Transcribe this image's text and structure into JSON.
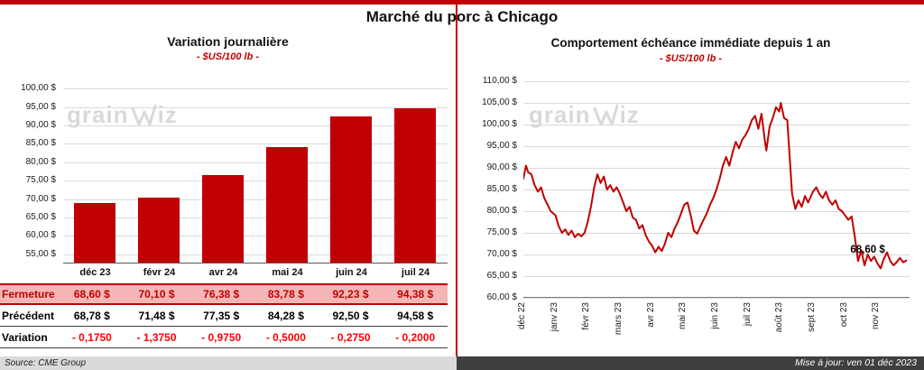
{
  "page": {
    "title": "Marché du porc à Chicago",
    "source": "Source: CME Group",
    "updated": "Mise à jour: ven 01 déc 2023",
    "accent_color": "#C00000",
    "watermark": {
      "left": "grain",
      "right": "iz"
    }
  },
  "chart_data": [
    {
      "type": "bar",
      "title": "Variation journalière",
      "subtitle": "- $US/100 lb -",
      "categories": [
        "déc 23",
        "févr 24",
        "avr 24",
        "mai 24",
        "juin 24",
        "juil 24"
      ],
      "values": [
        68.6,
        70.1,
        76.38,
        83.78,
        92.23,
        94.38
      ],
      "bar_color": "#C00000",
      "grid": true,
      "ylim": [
        52.5,
        102.5
      ],
      "yticks": [
        {
          "v": 55,
          "label": "55,00 $"
        },
        {
          "v": 60,
          "label": "60,00 $"
        },
        {
          "v": 65,
          "label": "65,00 $"
        },
        {
          "v": 70,
          "label": "70,00 $"
        },
        {
          "v": 75,
          "label": "75,00 $"
        },
        {
          "v": 80,
          "label": "80,00 $"
        },
        {
          "v": 85,
          "label": "85,00 $"
        },
        {
          "v": 90,
          "label": "90,00 $"
        },
        {
          "v": 95,
          "label": "95,00 $"
        },
        {
          "v": 100,
          "label": "100,00 $"
        }
      ]
    },
    {
      "type": "line",
      "title": "Comportement échéance immédiate depuis 1 an",
      "subtitle": "- $US/100 lb -",
      "line_color": "#C00000",
      "grid": true,
      "ylim": [
        60,
        110
      ],
      "yticks": [
        {
          "v": 60,
          "label": "60,00 $"
        },
        {
          "v": 65,
          "label": "65,00 $"
        },
        {
          "v": 70,
          "label": "70,00 $"
        },
        {
          "v": 75,
          "label": "75,00 $"
        },
        {
          "v": 80,
          "label": "80,00 $"
        },
        {
          "v": 85,
          "label": "85,00 $"
        },
        {
          "v": 90,
          "label": "90,00 $"
        },
        {
          "v": 95,
          "label": "95,00 $"
        },
        {
          "v": 100,
          "label": "100,00 $"
        },
        {
          "v": 105,
          "label": "105,00 $"
        },
        {
          "v": 110,
          "label": "110,00 $"
        }
      ],
      "xtick_labels": [
        "déc 22",
        "janv 23",
        "févr 23",
        "mars 23",
        "avr 23",
        "mai 23",
        "juin 23",
        "juil 23",
        "août 23",
        "sept 23",
        "oct 23",
        "nov 23"
      ],
      "x_span": 12,
      "end_label": "68,60 $",
      "points": [
        [
          0,
          87.5
        ],
        [
          0.08,
          90.5
        ],
        [
          0.15,
          89
        ],
        [
          0.25,
          88.5
        ],
        [
          0.35,
          86
        ],
        [
          0.45,
          84.5
        ],
        [
          0.55,
          85.5
        ],
        [
          0.65,
          83
        ],
        [
          0.75,
          81.5
        ],
        [
          0.85,
          80
        ],
        [
          1,
          79
        ],
        [
          1.1,
          76.5
        ],
        [
          1.2,
          75
        ],
        [
          1.3,
          75.8
        ],
        [
          1.4,
          74.5
        ],
        [
          1.5,
          75.5
        ],
        [
          1.6,
          74
        ],
        [
          1.7,
          74.8
        ],
        [
          1.8,
          74.2
        ],
        [
          1.9,
          75
        ],
        [
          2,
          77.5
        ],
        [
          2.1,
          81
        ],
        [
          2.2,
          85.5
        ],
        [
          2.3,
          88.5
        ],
        [
          2.4,
          86.5
        ],
        [
          2.5,
          88
        ],
        [
          2.6,
          85
        ],
        [
          2.7,
          86
        ],
        [
          2.8,
          84.5
        ],
        [
          2.9,
          85.5
        ],
        [
          3,
          84
        ],
        [
          3.1,
          82
        ],
        [
          3.2,
          80
        ],
        [
          3.3,
          81
        ],
        [
          3.4,
          78.5
        ],
        [
          3.5,
          78
        ],
        [
          3.6,
          76
        ],
        [
          3.7,
          76.8
        ],
        [
          3.8,
          74.5
        ],
        [
          3.9,
          73
        ],
        [
          4,
          72
        ],
        [
          4.1,
          70.5
        ],
        [
          4.2,
          71.8
        ],
        [
          4.3,
          70.8
        ],
        [
          4.4,
          72.5
        ],
        [
          4.5,
          75
        ],
        [
          4.6,
          74
        ],
        [
          4.7,
          76
        ],
        [
          4.8,
          77.5
        ],
        [
          4.9,
          79.5
        ],
        [
          5,
          81.5
        ],
        [
          5.1,
          82
        ],
        [
          5.2,
          79
        ],
        [
          5.3,
          75.5
        ],
        [
          5.4,
          74.8
        ],
        [
          5.5,
          76.5
        ],
        [
          5.6,
          78
        ],
        [
          5.7,
          79.5
        ],
        [
          5.8,
          81.5
        ],
        [
          5.9,
          83
        ],
        [
          6,
          85
        ],
        [
          6.1,
          87.5
        ],
        [
          6.2,
          90.5
        ],
        [
          6.3,
          92.5
        ],
        [
          6.4,
          90.5
        ],
        [
          6.5,
          93.5
        ],
        [
          6.6,
          96
        ],
        [
          6.7,
          94.5
        ],
        [
          6.8,
          96.5
        ],
        [
          6.9,
          97.5
        ],
        [
          7,
          99
        ],
        [
          7.1,
          101
        ],
        [
          7.2,
          102
        ],
        [
          7.3,
          99
        ],
        [
          7.4,
          102.5
        ],
        [
          7.5,
          96.5
        ],
        [
          7.55,
          94
        ],
        [
          7.65,
          99.5
        ],
        [
          7.75,
          101.5
        ],
        [
          7.85,
          104
        ],
        [
          7.95,
          103
        ],
        [
          8,
          105
        ],
        [
          8.1,
          101.5
        ],
        [
          8.2,
          101
        ],
        [
          8.28,
          92
        ],
        [
          8.35,
          84
        ],
        [
          8.45,
          80.5
        ],
        [
          8.55,
          82.5
        ],
        [
          8.65,
          81
        ],
        [
          8.75,
          83.5
        ],
        [
          8.85,
          82
        ],
        [
          9,
          84.5
        ],
        [
          9.1,
          85.5
        ],
        [
          9.2,
          84
        ],
        [
          9.3,
          83
        ],
        [
          9.4,
          84.5
        ],
        [
          9.5,
          82.5
        ],
        [
          9.6,
          81.5
        ],
        [
          9.7,
          82.5
        ],
        [
          9.8,
          80.5
        ],
        [
          9.9,
          80
        ],
        [
          10,
          79
        ],
        [
          10.1,
          78
        ],
        [
          10.2,
          78.8
        ],
        [
          10.3,
          74
        ],
        [
          10.4,
          68.5
        ],
        [
          10.5,
          71
        ],
        [
          10.6,
          67.5
        ],
        [
          10.7,
          70
        ],
        [
          10.8,
          68.5
        ],
        [
          10.9,
          69.5
        ],
        [
          11,
          68
        ],
        [
          11.1,
          66.8
        ],
        [
          11.2,
          69
        ],
        [
          11.3,
          70.5
        ],
        [
          11.4,
          68.5
        ],
        [
          11.5,
          67.5
        ],
        [
          11.6,
          68.2
        ],
        [
          11.7,
          69.2
        ],
        [
          11.8,
          68.2
        ],
        [
          11.9,
          68.6
        ]
      ]
    },
    {
      "type": "table",
      "rows": [
        {
          "label": "Fermeture",
          "values": [
            "68,60 $",
            "70,10 $",
            "76,38 $",
            "83,78 $",
            "92,23 $",
            "94,38 $"
          ]
        },
        {
          "label": "Précédent",
          "values": [
            "68,78 $",
            "71,48 $",
            "77,35 $",
            "84,28 $",
            "92,50 $",
            "94,58 $"
          ]
        },
        {
          "label": "Variation",
          "values": [
            "- 0,1750",
            "- 1,3750",
            "- 0,9750",
            "- 0,5000",
            "- 0,2750",
            "- 0,2000"
          ]
        }
      ]
    }
  ]
}
